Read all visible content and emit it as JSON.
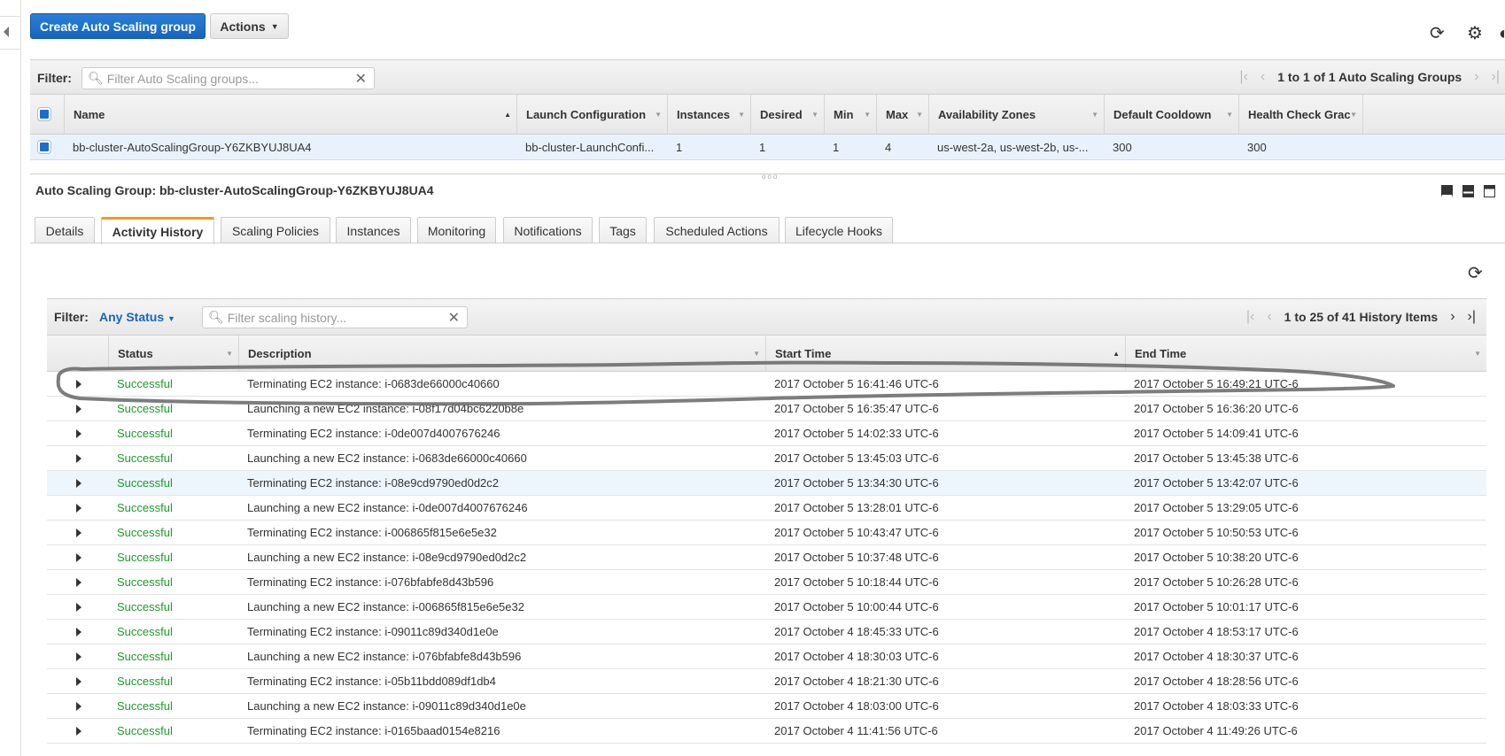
{
  "toolbar": {
    "create_label": "Create Auto Scaling group",
    "actions_label": "Actions"
  },
  "icons": {
    "refresh": "refresh-icon",
    "settings": "gear-icon",
    "help": "help-icon"
  },
  "groups": {
    "filter_label": "Filter:",
    "filter_placeholder": "Filter Auto Scaling groups...",
    "pager_text": "1 to 1 of 1 Auto Scaling Groups",
    "columns": [
      "Name",
      "Launch Configuration",
      "Instances",
      "Desired",
      "Min",
      "Max",
      "Availability Zones",
      "Default Cooldown",
      "Health Check Grac"
    ],
    "row": [
      "bb-cluster-AutoScalingGroup-Y6ZKBYUJ8UA4",
      "bb-cluster-LaunchConfi...",
      "1",
      "1",
      "1",
      "4",
      "us-west-2a, us-west-2b, us-...",
      "300",
      "300"
    ]
  },
  "detail": {
    "title": "Auto Scaling Group: bb-cluster-AutoScalingGroup-Y6ZKBYUJ8UA4",
    "tabs": [
      "Details",
      "Activity History",
      "Scaling Policies",
      "Instances",
      "Monitoring",
      "Notifications",
      "Tags",
      "Scheduled Actions",
      "Lifecycle Hooks"
    ],
    "active_tab": "Activity History"
  },
  "history": {
    "filter_label": "Filter:",
    "status_filter": "Any Status",
    "filter_placeholder": "Filter scaling history...",
    "pager_text": "1 to 25 of 41 History Items",
    "columns": [
      "Status",
      "Description",
      "Start Time",
      "End Time"
    ],
    "rows": [
      [
        "Successful",
        "Terminating EC2 instance: i-0683de66000c40660",
        "2017 October 5 16:41:46 UTC-6",
        "2017 October 5 16:49:21 UTC-6"
      ],
      [
        "Successful",
        "Launching a new EC2 instance: i-08f17d04bc6220b8e",
        "2017 October 5 16:35:47 UTC-6",
        "2017 October 5 16:36:20 UTC-6"
      ],
      [
        "Successful",
        "Terminating EC2 instance: i-0de007d4007676246",
        "2017 October 5 14:02:33 UTC-6",
        "2017 October 5 14:09:41 UTC-6"
      ],
      [
        "Successful",
        "Launching a new EC2 instance: i-0683de66000c40660",
        "2017 October 5 13:45:03 UTC-6",
        "2017 October 5 13:45:38 UTC-6"
      ],
      [
        "Successful",
        "Terminating EC2 instance: i-08e9cd9790ed0d2c2",
        "2017 October 5 13:34:30 UTC-6",
        "2017 October 5 13:42:07 UTC-6"
      ],
      [
        "Successful",
        "Launching a new EC2 instance: i-0de007d4007676246",
        "2017 October 5 13:28:01 UTC-6",
        "2017 October 5 13:29:05 UTC-6"
      ],
      [
        "Successful",
        "Terminating EC2 instance: i-006865f815e6e5e32",
        "2017 October 5 10:43:47 UTC-6",
        "2017 October 5 10:50:53 UTC-6"
      ],
      [
        "Successful",
        "Launching a new EC2 instance: i-08e9cd9790ed0d2c2",
        "2017 October 5 10:37:48 UTC-6",
        "2017 October 5 10:38:20 UTC-6"
      ],
      [
        "Successful",
        "Terminating EC2 instance: i-076bfabfe8d43b596",
        "2017 October 5 10:18:44 UTC-6",
        "2017 October 5 10:26:28 UTC-6"
      ],
      [
        "Successful",
        "Launching a new EC2 instance: i-006865f815e6e5e32",
        "2017 October 5 10:00:44 UTC-6",
        "2017 October 5 10:01:17 UTC-6"
      ],
      [
        "Successful",
        "Terminating EC2 instance: i-09011c89d340d1e0e",
        "2017 October 4 18:45:33 UTC-6",
        "2017 October 4 18:53:17 UTC-6"
      ],
      [
        "Successful",
        "Launching a new EC2 instance: i-076bfabfe8d43b596",
        "2017 October 4 18:30:03 UTC-6",
        "2017 October 4 18:30:37 UTC-6"
      ],
      [
        "Successful",
        "Terminating EC2 instance: i-05b11bdd089df1db4",
        "2017 October 4 18:21:30 UTC-6",
        "2017 October 4 18:28:56 UTC-6"
      ],
      [
        "Successful",
        "Launching a new EC2 instance: i-09011c89d340d1e0e",
        "2017 October 4 18:03:00 UTC-6",
        "2017 October 4 18:03:33 UTC-6"
      ],
      [
        "Successful",
        "Terminating EC2 instance: i-0165baad0154e8216",
        "2017 October 4 11:41:56 UTC-6",
        "2017 October 4 11:49:26 UTC-6"
      ]
    ],
    "highlighted_row": 4
  },
  "colors": {
    "primary": "#1a6ed0",
    "success": "#1d9a2a",
    "active_tab": "#f19a1f",
    "link": "#1a66b8"
  }
}
